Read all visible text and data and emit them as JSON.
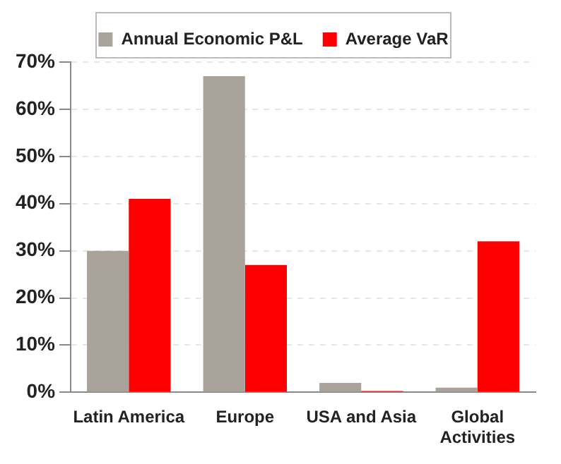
{
  "chart_data": {
    "type": "bar",
    "categories": [
      "Latin America",
      "Europe",
      "USA and Asia",
      "Global Activities"
    ],
    "series": [
      {
        "name": "Annual Economic P&L",
        "color": "#aaa39c",
        "values": [
          30,
          67,
          2,
          1
        ]
      },
      {
        "name": "Average VaR",
        "color": "#ff0000",
        "values": [
          41,
          27,
          0.3,
          32
        ]
      }
    ],
    "ylim": [
      0,
      70
    ],
    "yticks": [
      {
        "value": 0,
        "label": "0%"
      },
      {
        "value": 10,
        "label": "10%"
      },
      {
        "value": 20,
        "label": "20%"
      },
      {
        "value": 30,
        "label": "30%"
      },
      {
        "value": 40,
        "label": "40%"
      },
      {
        "value": 50,
        "label": "50%"
      },
      {
        "value": 60,
        "label": "60%"
      },
      {
        "value": 70,
        "label": "70%"
      }
    ],
    "grid": "y",
    "legend": "top"
  }
}
